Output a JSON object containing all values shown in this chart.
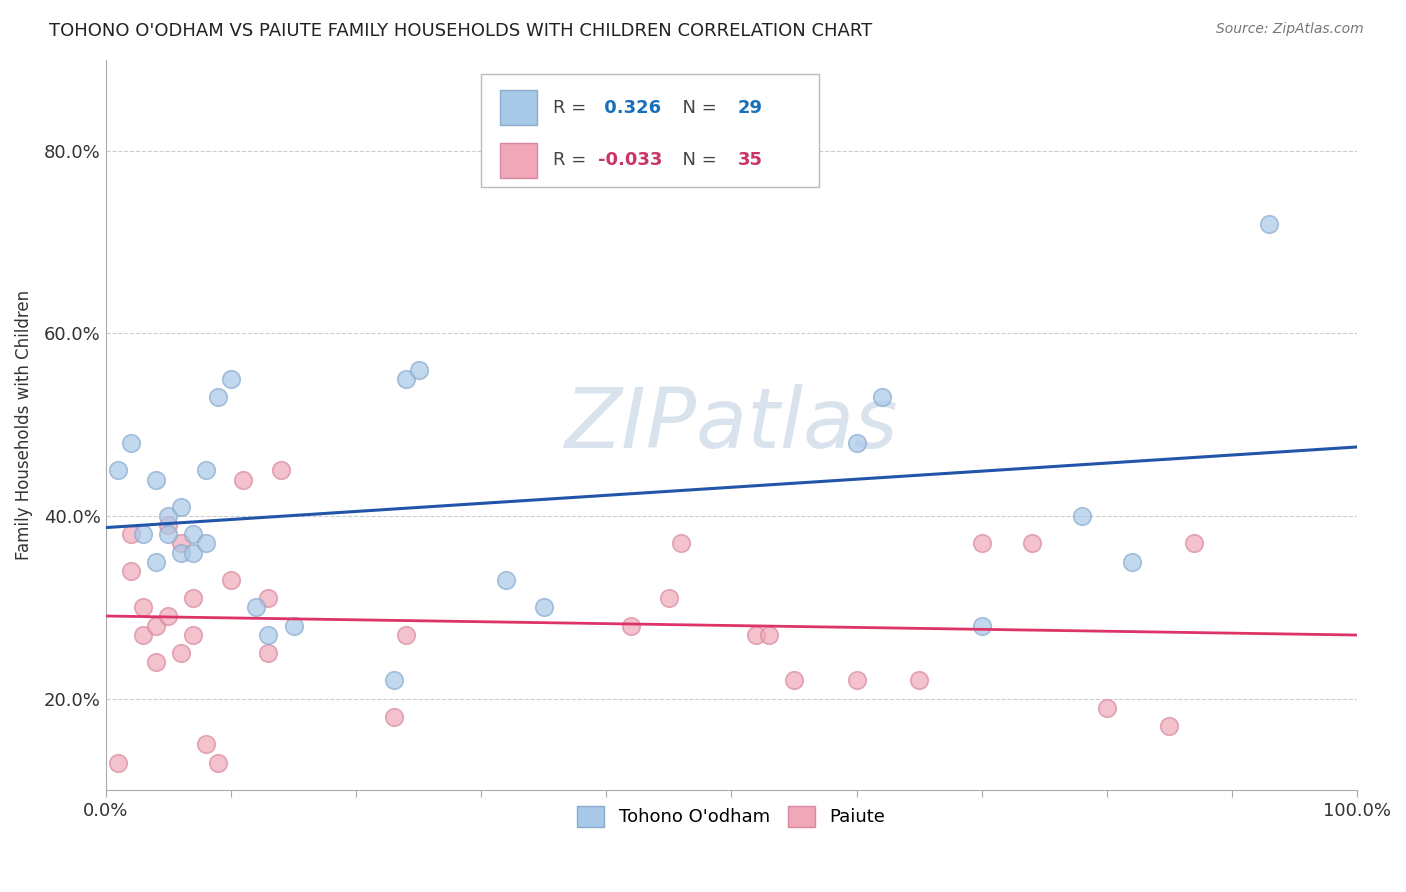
{
  "title": "TOHONO O'ODHAM VS PAIUTE FAMILY HOUSEHOLDS WITH CHILDREN CORRELATION CHART",
  "source": "Source: ZipAtlas.com",
  "ylabel": "Family Households with Children",
  "xlim": [
    0.0,
    1.0
  ],
  "ylim": [
    0.1,
    0.9
  ],
  "xticks": [
    0.0,
    0.1,
    0.2,
    0.3,
    0.4,
    0.5,
    0.6,
    0.7,
    0.8,
    0.9,
    1.0
  ],
  "yticks": [
    0.2,
    0.4,
    0.6,
    0.8
  ],
  "yticklabels": [
    "20.0%",
    "40.0%",
    "60.0%",
    "80.0%"
  ],
  "R_blue": 0.326,
  "N_blue": 29,
  "R_pink": -0.033,
  "N_pink": 35,
  "blue_color": "#a8c8e8",
  "pink_color": "#f0a8b8",
  "blue_edge_color": "#88aacc",
  "pink_edge_color": "#d888a0",
  "blue_line_color": "#2255aa",
  "pink_line_color": "#dd3366",
  "watermark_color": "#c8d8e8",
  "tohono_x": [
    0.01,
    0.02,
    0.03,
    0.04,
    0.04,
    0.05,
    0.05,
    0.06,
    0.06,
    0.07,
    0.07,
    0.08,
    0.08,
    0.09,
    0.1,
    0.12,
    0.13,
    0.15,
    0.23,
    0.24,
    0.25,
    0.32,
    0.35,
    0.6,
    0.62,
    0.7,
    0.78,
    0.82,
    0.93
  ],
  "tohono_y": [
    0.45,
    0.48,
    0.38,
    0.35,
    0.44,
    0.38,
    0.4,
    0.36,
    0.41,
    0.36,
    0.38,
    0.37,
    0.45,
    0.53,
    0.55,
    0.3,
    0.27,
    0.28,
    0.22,
    0.55,
    0.56,
    0.33,
    0.3,
    0.48,
    0.53,
    0.28,
    0.4,
    0.35,
    0.72
  ],
  "paiute_x": [
    0.01,
    0.02,
    0.02,
    0.03,
    0.03,
    0.04,
    0.04,
    0.05,
    0.05,
    0.06,
    0.06,
    0.07,
    0.07,
    0.08,
    0.09,
    0.1,
    0.11,
    0.13,
    0.13,
    0.14,
    0.23,
    0.24,
    0.42,
    0.45,
    0.46,
    0.52,
    0.53,
    0.55,
    0.6,
    0.65,
    0.7,
    0.74,
    0.8,
    0.85,
    0.87
  ],
  "paiute_y": [
    0.13,
    0.34,
    0.38,
    0.27,
    0.3,
    0.24,
    0.28,
    0.29,
    0.39,
    0.25,
    0.37,
    0.27,
    0.31,
    0.15,
    0.13,
    0.33,
    0.44,
    0.25,
    0.31,
    0.45,
    0.18,
    0.27,
    0.28,
    0.31,
    0.37,
    0.27,
    0.27,
    0.22,
    0.22,
    0.22,
    0.37,
    0.37,
    0.19,
    0.17,
    0.37
  ]
}
